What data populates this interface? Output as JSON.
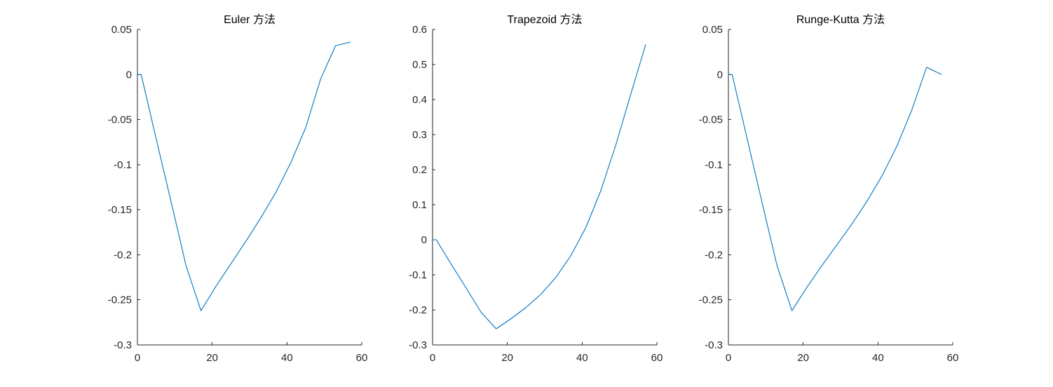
{
  "style": {
    "line_color": "#0072BD",
    "axis_color": "#262626",
    "background": "#ffffff"
  },
  "chart_data": [
    {
      "type": "line",
      "title": "Euler 方法",
      "xlabel": "",
      "ylabel": "",
      "xlim": [
        0,
        60
      ],
      "ylim": [
        -0.3,
        0.05
      ],
      "xticks": [
        0,
        20,
        40,
        60
      ],
      "xtick_labels": [
        "0",
        "20",
        "40",
        "60"
      ],
      "yticks": [
        -0.3,
        -0.25,
        -0.2,
        -0.15,
        -0.1,
        -0.05,
        0,
        0.05
      ],
      "ytick_labels": [
        "-0.3",
        "-0.25",
        "-0.2",
        "-0.15",
        "-0.1",
        "-0.05",
        "0",
        "0.05"
      ],
      "grid": false,
      "series": [
        {
          "x": [
            0,
            1,
            5,
            9,
            13,
            17,
            21,
            25,
            29,
            33,
            37,
            41,
            45,
            49,
            53,
            57
          ],
          "y": [
            0,
            0,
            -0.071,
            -0.141,
            -0.212,
            -0.262,
            -0.235,
            -0.21,
            -0.185,
            -0.159,
            -0.131,
            -0.098,
            -0.059,
            -0.005,
            0.032,
            0.036
          ]
        }
      ]
    },
    {
      "type": "line",
      "title": "Trapezoid 方法",
      "xlabel": "",
      "ylabel": "",
      "xlim": [
        0,
        60
      ],
      "ylim": [
        -0.3,
        0.6
      ],
      "xticks": [
        0,
        20,
        40,
        60
      ],
      "xtick_labels": [
        "0",
        "20",
        "40",
        "60"
      ],
      "yticks": [
        -0.3,
        -0.2,
        -0.1,
        0,
        0.1,
        0.2,
        0.3,
        0.4,
        0.5,
        0.6
      ],
      "ytick_labels": [
        "-0.3",
        "-0.2",
        "-0.1",
        "0",
        "0.1",
        "0.2",
        "0.3",
        "0.4",
        "0.5",
        "0.6"
      ],
      "grid": false,
      "series": [
        {
          "x": [
            0,
            1,
            5,
            9,
            13,
            17,
            21,
            25,
            29,
            33,
            37,
            41,
            45,
            49,
            53,
            57
          ],
          "y": [
            0,
            0,
            -0.07,
            -0.138,
            -0.207,
            -0.254,
            -0.225,
            -0.193,
            -0.155,
            -0.107,
            -0.045,
            0.035,
            0.14,
            0.27,
            0.415,
            0.557
          ]
        }
      ]
    },
    {
      "type": "line",
      "title": "Runge-Kutta 方法",
      "xlabel": "",
      "ylabel": "",
      "xlim": [
        0,
        60
      ],
      "ylim": [
        -0.3,
        0.05
      ],
      "xticks": [
        0,
        20,
        40,
        60
      ],
      "xtick_labels": [
        "0",
        "20",
        "40",
        "60"
      ],
      "yticks": [
        -0.3,
        -0.25,
        -0.2,
        -0.15,
        -0.1,
        -0.05,
        0,
        0.05
      ],
      "ytick_labels": [
        "-0.3",
        "-0.25",
        "-0.2",
        "-0.15",
        "-0.1",
        "-0.05",
        "0",
        "0.05"
      ],
      "grid": false,
      "series": [
        {
          "x": [
            0,
            1,
            5,
            9,
            13,
            17,
            21,
            25,
            29,
            33,
            37,
            41,
            45,
            49,
            53,
            57
          ],
          "y": [
            0,
            0,
            -0.071,
            -0.142,
            -0.212,
            -0.262,
            -0.236,
            -0.212,
            -0.189,
            -0.166,
            -0.141,
            -0.113,
            -0.08,
            -0.04,
            0.008,
            0.0
          ]
        }
      ]
    }
  ]
}
